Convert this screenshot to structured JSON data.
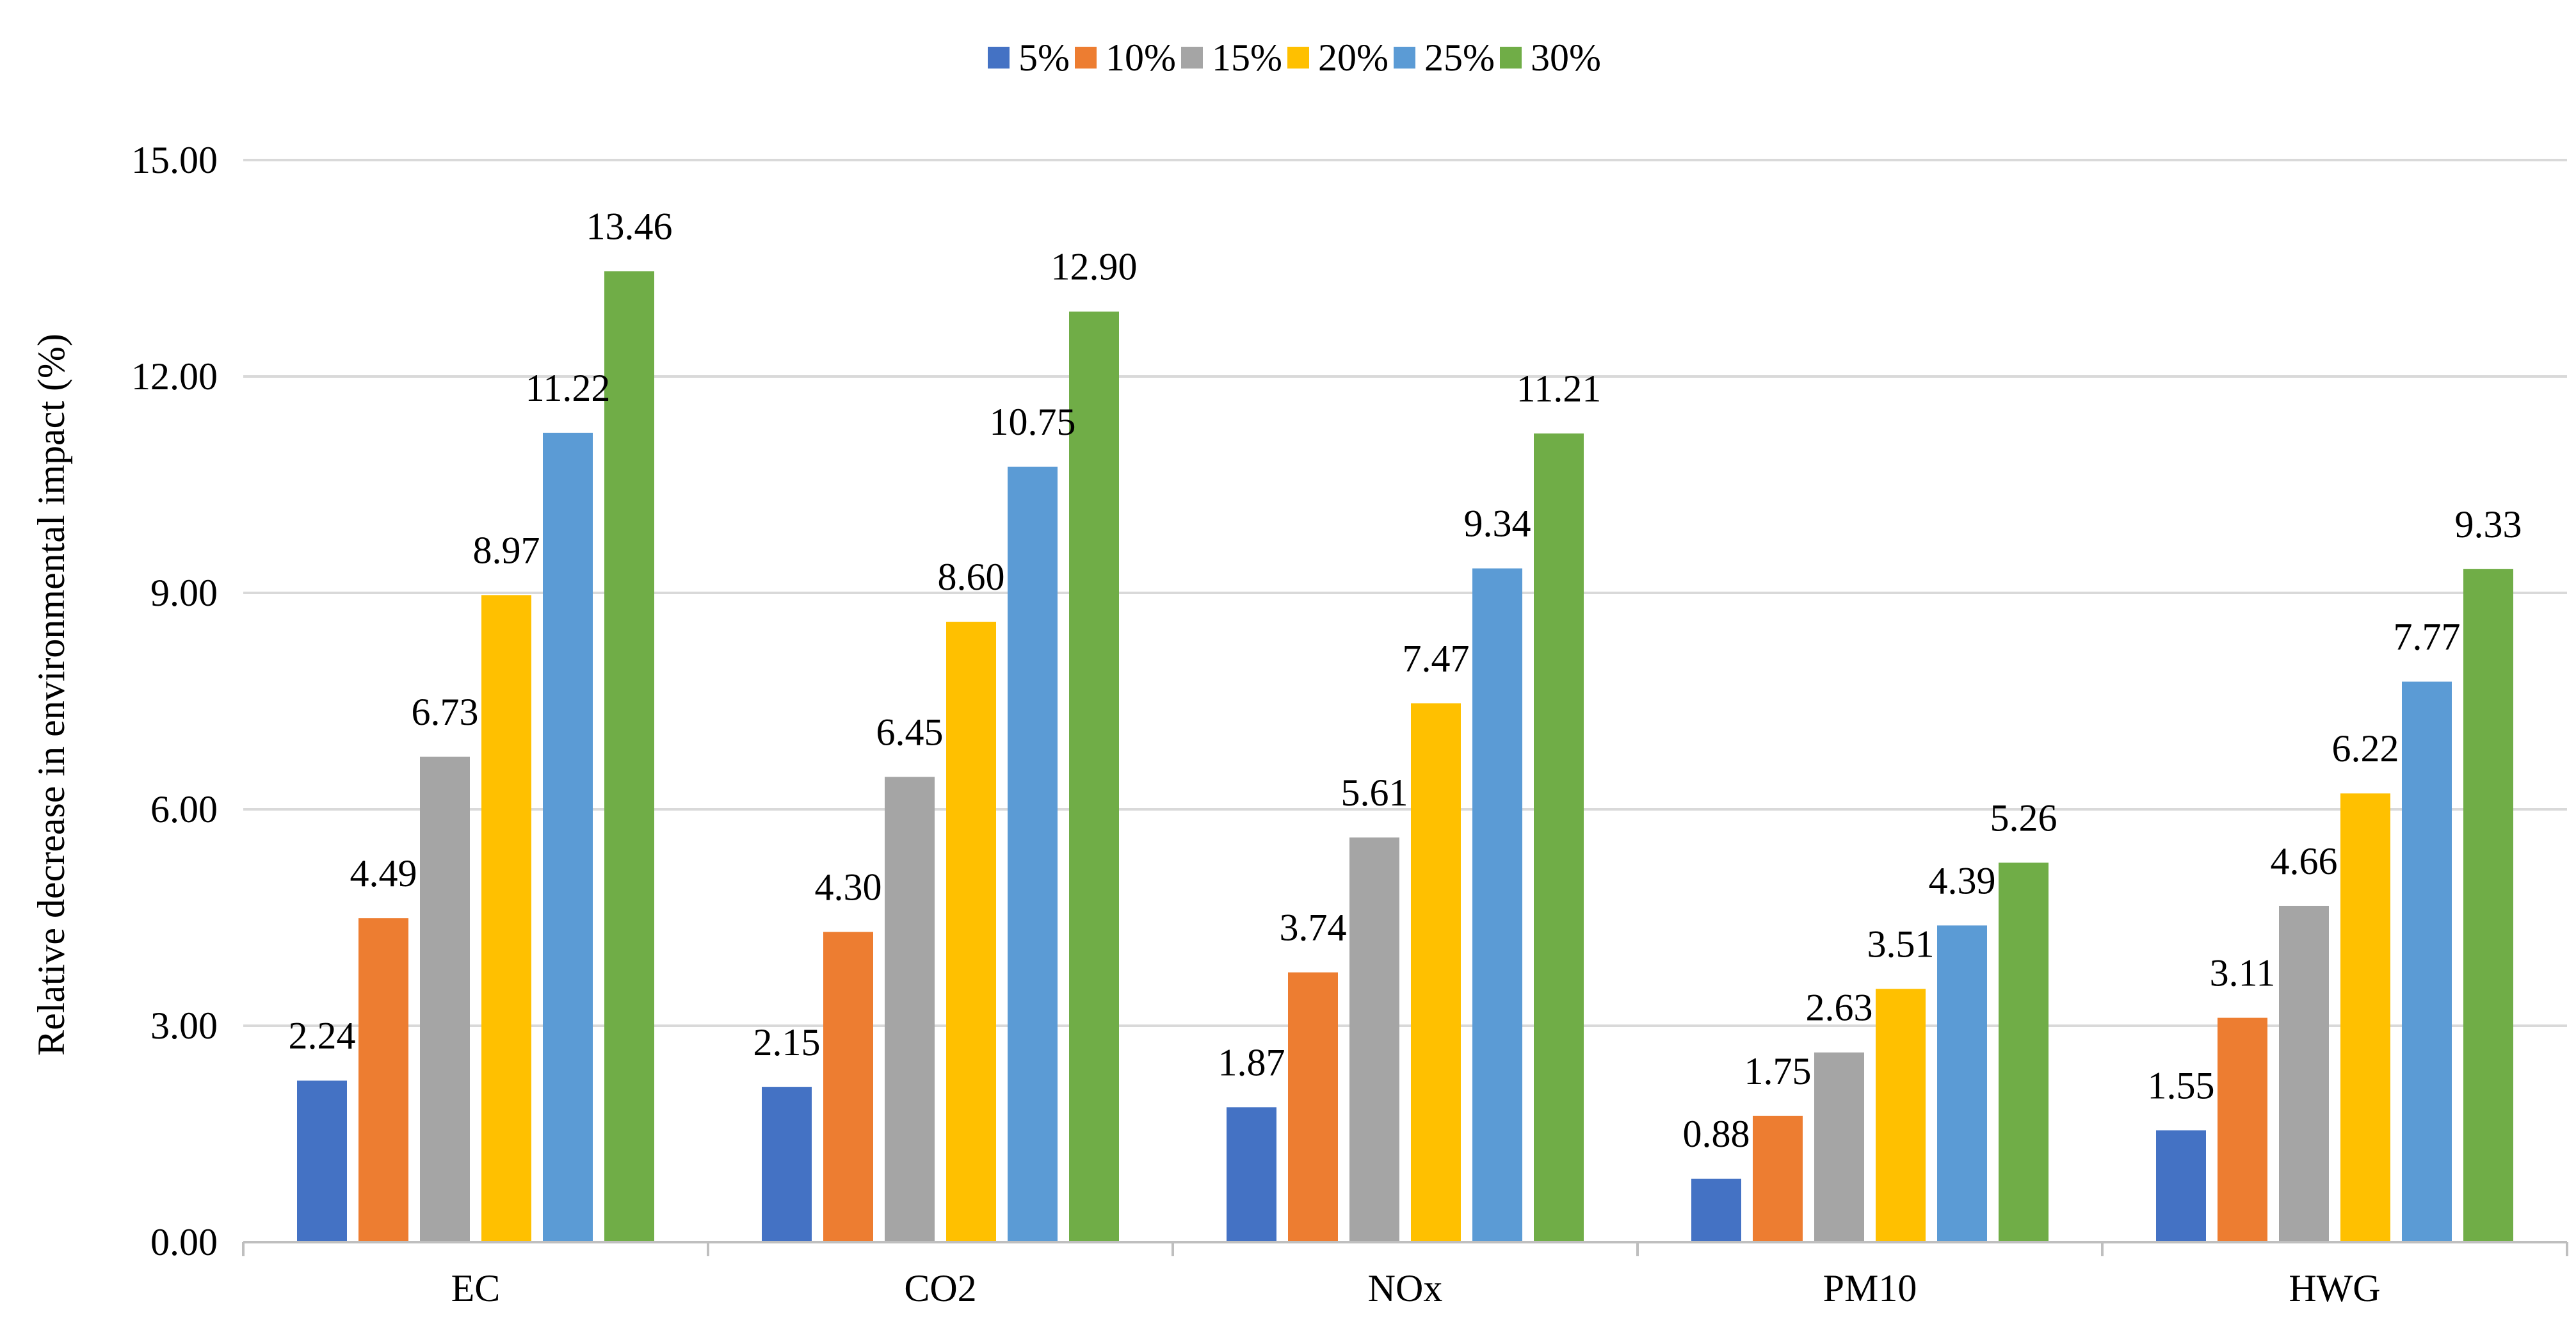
{
  "chart_data": {
    "type": "bar",
    "title": "",
    "xlabel": "",
    "ylabel": "Relative decrease in environmental impact (%)",
    "ylim": [
      0,
      15
    ],
    "yticks": [
      "0.00",
      "3.00",
      "6.00",
      "9.00",
      "12.00",
      "15.00"
    ],
    "grid": true,
    "legend_position": "top-center",
    "categories": [
      "EC",
      "CO2",
      "NOx",
      "PM10",
      "HWG"
    ],
    "series": [
      {
        "name": "5%",
        "color": "#4472C4",
        "values": [
          2.24,
          2.15,
          1.87,
          0.88,
          1.55
        ],
        "labels": [
          "2.24",
          "2.15",
          "1.87",
          "0.88",
          "1.55"
        ]
      },
      {
        "name": "10%",
        "color": "#ED7D31",
        "values": [
          4.49,
          4.3,
          3.74,
          1.75,
          3.11
        ],
        "labels": [
          "4.49",
          "4.30",
          "3.74",
          "1.75",
          "3.11"
        ]
      },
      {
        "name": "15%",
        "color": "#A5A5A5",
        "values": [
          6.73,
          6.45,
          5.61,
          2.63,
          4.66
        ],
        "labels": [
          "6.73",
          "6.45",
          "5.61",
          "2.63",
          "4.66"
        ]
      },
      {
        "name": "20%",
        "color": "#FFC000",
        "values": [
          8.97,
          8.6,
          7.47,
          3.51,
          6.22
        ],
        "labels": [
          "8.97",
          "8.60",
          "7.47",
          "3.51",
          "6.22"
        ]
      },
      {
        "name": "25%",
        "color": "#5B9BD5",
        "values": [
          11.22,
          10.75,
          9.34,
          4.39,
          7.77
        ],
        "labels": [
          "11.22",
          "10.75",
          "9.34",
          "4.39",
          "7.77"
        ]
      },
      {
        "name": "30%",
        "color": "#70AD47",
        "values": [
          13.46,
          12.9,
          11.21,
          5.26,
          9.33
        ],
        "labels": [
          "13.46",
          "12.90",
          "11.21",
          "5.26",
          "9.33"
        ]
      }
    ]
  }
}
